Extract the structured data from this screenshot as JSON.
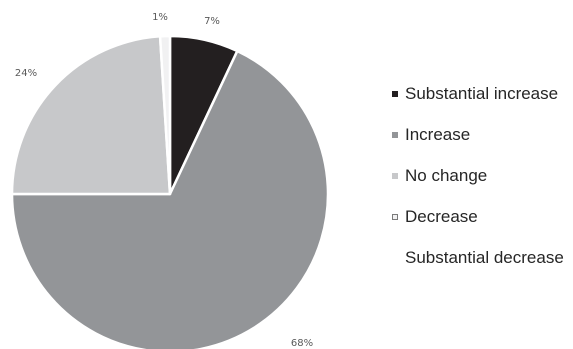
{
  "chart_data": {
    "type": "pie",
    "categories": [
      "Substantial increase",
      "Increase",
      "No change",
      "Decrease",
      "Substantial decrease"
    ],
    "values": [
      7,
      68,
      24,
      1,
      0
    ],
    "data_labels": [
      "7%",
      "68%",
      "24%",
      "1%",
      ""
    ],
    "colors": [
      "#231f20",
      "#939598",
      "#c7c8ca",
      "#f1f1f2",
      "#ffffff"
    ],
    "swatch_borders": [
      "#231f20",
      "#939598",
      "#c7c8ca",
      "#7a7a7a",
      "none"
    ],
    "slice_border_color": "#ffffff",
    "start_angle_deg": 0,
    "direction": "clockwise",
    "legend_position": "right",
    "title": ""
  }
}
